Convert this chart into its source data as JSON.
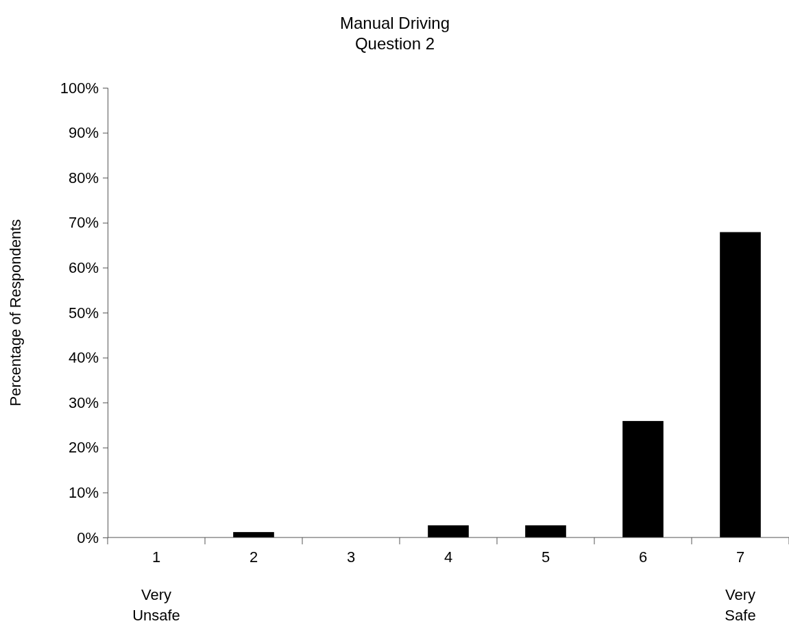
{
  "chart_data": {
    "type": "bar",
    "title": "Manual Driving\nQuestion 2",
    "ylabel": "Percentage of Respondents",
    "categories": [
      "1\nVery\nUnsafe",
      "2",
      "3",
      "4",
      "5",
      "6",
      "7\nVery\nSafe"
    ],
    "values": [
      0,
      1.2,
      0,
      2.7,
      2.7,
      25.9,
      67.9
    ],
    "color": "#000000",
    "ylim": [
      0,
      100
    ],
    "yticks": [
      {
        "value": 0,
        "label": "0%"
      },
      {
        "value": 10,
        "label": "10%"
      },
      {
        "value": 20,
        "label": "20%"
      },
      {
        "value": 30,
        "label": "30%"
      },
      {
        "value": 40,
        "label": "40%"
      },
      {
        "value": 50,
        "label": "50%"
      },
      {
        "value": 60,
        "label": "60%"
      },
      {
        "value": 70,
        "label": "70%"
      },
      {
        "value": 80,
        "label": "80%"
      },
      {
        "value": 90,
        "label": "90%"
      },
      {
        "value": 100,
        "label": "100%"
      }
    ],
    "grid": false
  }
}
